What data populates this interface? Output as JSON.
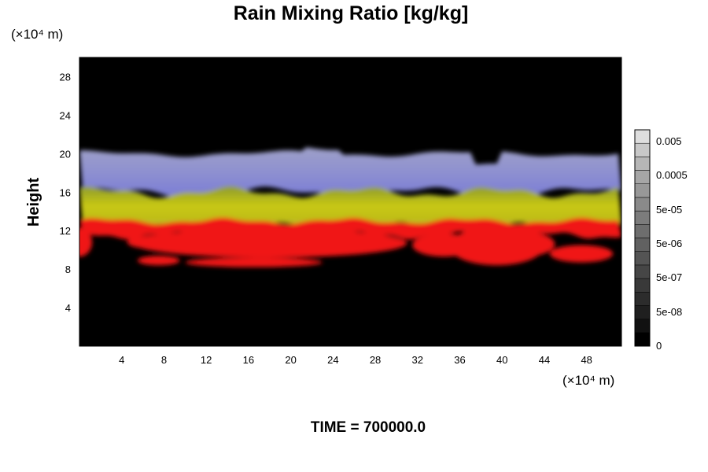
{
  "chart_data": {
    "type": "heatmap",
    "title": "Rain Mixing Ratio [kg/kg]",
    "xlabel": "",
    "ylabel": "Height",
    "x_unit_label": "(×10⁴ m)",
    "y_unit_label": "(×10⁴ m)",
    "xlim": [
      0,
      51.3
    ],
    "ylim": [
      0,
      30
    ],
    "x_ticks": [
      4,
      8,
      12,
      16,
      20,
      24,
      28,
      32,
      36,
      40,
      44,
      48
    ],
    "y_ticks": [
      4,
      8,
      12,
      16,
      20,
      24,
      28
    ],
    "grid": false,
    "background_color": "#000000",
    "layers": [
      {
        "name": "upper",
        "color": "#a4a6d8",
        "y_range": [
          16,
          20
        ]
      },
      {
        "name": "middle",
        "color": "#bcbc18",
        "y_range": [
          12.5,
          16
        ]
      },
      {
        "name": "lower",
        "color": "#ff1a1a",
        "y_range": [
          9,
          13
        ]
      }
    ],
    "colorbar": {
      "tick_labels": [
        "0.005",
        "0.0005",
        "5e-05",
        "5e-06",
        "5e-07",
        "5e-08",
        "0"
      ],
      "levels": 16,
      "colors_bottom_to_top": [
        "#000000",
        "#111111",
        "#1f1f1f",
        "#2c2c2c",
        "#393939",
        "#464646",
        "#545454",
        "#616161",
        "#6e6e6e",
        "#7c7c7c",
        "#8a8a8a",
        "#989898",
        "#a6a6a6",
        "#b6b6b6",
        "#c8c8c8",
        "#dedede"
      ]
    }
  },
  "footer": {
    "time_label": "TIME = 700000.0"
  }
}
